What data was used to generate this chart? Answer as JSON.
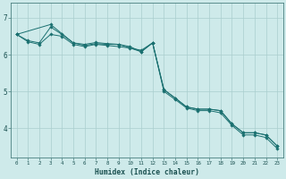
{
  "xlabel": "Humidex (Indice chaleur)",
  "background_color": "#ceeaea",
  "line_color": "#1a7070",
  "grid_color": "#aacece",
  "xlim": [
    -0.5,
    23.5
  ],
  "ylim": [
    3.2,
    7.4
  ],
  "yticks": [
    4,
    5,
    6,
    7
  ],
  "xticks": [
    0,
    1,
    2,
    3,
    4,
    5,
    6,
    7,
    8,
    9,
    10,
    11,
    12,
    13,
    14,
    15,
    16,
    17,
    18,
    19,
    20,
    21,
    22,
    23
  ],
  "series1_x": [
    0,
    1,
    2,
    3,
    4,
    5,
    6,
    7,
    8,
    9,
    10,
    11,
    12,
    13,
    14,
    15,
    16,
    17,
    18,
    19,
    20,
    21,
    22,
    23
  ],
  "series1_y": [
    6.55,
    6.38,
    6.32,
    6.75,
    6.55,
    6.32,
    6.28,
    6.33,
    6.3,
    6.28,
    6.22,
    6.08,
    6.32,
    5.05,
    4.82,
    4.58,
    4.52,
    4.52,
    4.48,
    4.12,
    3.88,
    3.88,
    3.82,
    3.52
  ],
  "series2_x": [
    0,
    3,
    5,
    6,
    7,
    8,
    9,
    11,
    12,
    13,
    14,
    15,
    16,
    17,
    18,
    19,
    20,
    21,
    22,
    23
  ],
  "series2_y": [
    6.55,
    6.82,
    6.32,
    6.25,
    6.3,
    6.28,
    6.28,
    6.08,
    6.32,
    5.05,
    4.82,
    4.58,
    4.52,
    4.52,
    4.48,
    4.12,
    3.88,
    3.88,
    3.82,
    3.52
  ],
  "series3_x": [
    0,
    1,
    2,
    3,
    4,
    5,
    6,
    7,
    8,
    9,
    10,
    11,
    12,
    13,
    14,
    15,
    16,
    17,
    18,
    19,
    20,
    21,
    22,
    23
  ],
  "series3_y": [
    6.55,
    6.35,
    6.28,
    6.55,
    6.5,
    6.28,
    6.22,
    6.28,
    6.25,
    6.22,
    6.18,
    6.12,
    6.32,
    5.0,
    4.78,
    4.55,
    4.48,
    4.48,
    4.42,
    4.08,
    3.82,
    3.82,
    3.75,
    3.45
  ]
}
